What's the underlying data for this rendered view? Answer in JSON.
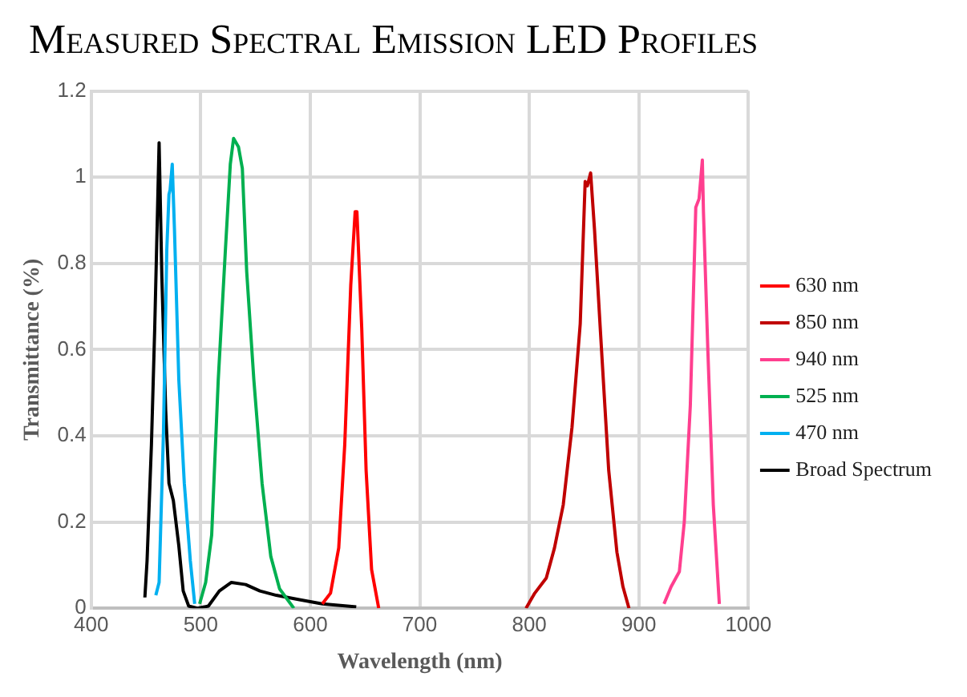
{
  "chart_data": {
    "type": "line",
    "title": "Measured Spectral Emission LED Profiles",
    "xlabel": "Wavelength (nm)",
    "ylabel": "Transmittance (%)",
    "xlim": [
      400,
      1000
    ],
    "xticks": [
      400,
      500,
      600,
      700,
      800,
      900,
      1000
    ],
    "ylim": [
      0,
      1.2
    ],
    "yticks": [
      0,
      0.2,
      0.4,
      0.6,
      0.8,
      1,
      1.2
    ],
    "grid": true,
    "legend": "right",
    "marker": "none",
    "line_style": "solid",
    "series": [
      {
        "name": "630 nm",
        "color": "#ff0000",
        "x": [
          611,
          618.5,
          626,
          631.5,
          637,
          641,
          642.6,
          647,
          651,
          656,
          662.5
        ],
        "values": [
          0.01,
          0.035,
          0.14,
          0.38,
          0.75,
          0.92,
          0.92,
          0.65,
          0.32,
          0.09,
          0
        ]
      },
      {
        "name": "850 nm",
        "color": "#c00000",
        "x": [
          797,
          805,
          815.5,
          823,
          831,
          839,
          846.5,
          851,
          853,
          856,
          859.5,
          865,
          872.5,
          880,
          885.5,
          891
        ],
        "values": [
          0,
          0.035,
          0.07,
          0.14,
          0.24,
          0.42,
          0.66,
          0.99,
          0.98,
          1.01,
          0.88,
          0.64,
          0.32,
          0.13,
          0.05,
          0
        ]
      },
      {
        "name": "940 nm",
        "color": "#ff3f8f",
        "x": [
          923,
          929.5,
          937,
          941.5,
          947,
          950.5,
          952,
          955,
          958,
          959,
          963,
          968,
          973.5
        ],
        "values": [
          0.01,
          0.05,
          0.085,
          0.2,
          0.47,
          0.79,
          0.93,
          0.95,
          1.04,
          0.92,
          0.6,
          0.24,
          0.01
        ]
      },
      {
        "name": "525 nm",
        "color": "#00b050",
        "x": [
          499,
          504.5,
          510,
          516,
          522.5,
          527,
          530,
          534.5,
          538,
          542,
          548.5,
          556,
          564,
          572,
          585
        ],
        "values": [
          0.01,
          0.06,
          0.17,
          0.53,
          0.83,
          1.03,
          1.09,
          1.07,
          1.02,
          0.78,
          0.53,
          0.29,
          0.12,
          0.045,
          0
        ]
      },
      {
        "name": "470 nm",
        "color": "#00b0f0",
        "x": [
          459,
          462,
          466,
          469,
          471,
          472,
          474,
          476,
          480,
          485,
          490.5,
          494.5
        ],
        "values": [
          0.03,
          0.06,
          0.41,
          0.83,
          0.96,
          0.97,
          1.03,
          0.88,
          0.53,
          0.29,
          0.11,
          0.01
        ]
      },
      {
        "name": "Broad Spectrum",
        "color": "#000000",
        "x": [
          449,
          451,
          455,
          458,
          462,
          464.5,
          468,
          471,
          475,
          480,
          484,
          489,
          497,
          507,
          517,
          528,
          541,
          554,
          569,
          590,
          611,
          642
        ],
        "values": [
          0.025,
          0.11,
          0.38,
          0.65,
          1.08,
          0.77,
          0.46,
          0.29,
          0.25,
          0.145,
          0.04,
          0.005,
          0,
          0.005,
          0.04,
          0.06,
          0.055,
          0.04,
          0.03,
          0.02,
          0.01,
          0.003
        ]
      }
    ]
  }
}
